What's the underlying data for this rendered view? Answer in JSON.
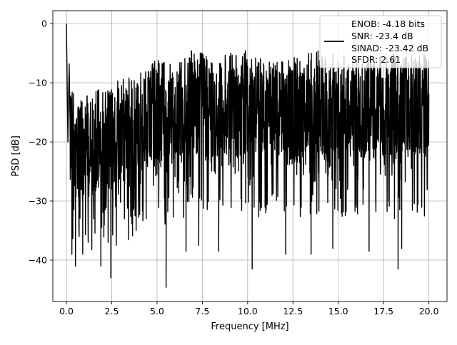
{
  "chart_data": {
    "type": "line",
    "title": "",
    "xlabel": "Frequency [MHz]",
    "ylabel": "PSD [dB]",
    "xlim": [
      -0.75,
      21.0
    ],
    "ylim": [
      -47.0,
      2.2
    ],
    "xticks": [
      0.0,
      2.5,
      5.0,
      7.5,
      10.0,
      12.5,
      15.0,
      17.5,
      20.0
    ],
    "xtick_labels": [
      "0.0",
      "2.5",
      "5.0",
      "7.5",
      "10.0",
      "12.5",
      "15.0",
      "17.5",
      "20.0"
    ],
    "yticks": [
      0,
      -10,
      -20,
      -30,
      -40
    ],
    "ytick_labels": [
      "0",
      "−10",
      "−20",
      "−30",
      "−40"
    ],
    "grid": true,
    "legend_position": "top-right",
    "legend_entries": [
      "ENOB: -4.18 bits",
      "SNR: -23.4 dB",
      "SINAD: -23.42 dB",
      "SFDR: 2.61"
    ],
    "series": [
      {
        "color": "#000000",
        "summary": "dense noise-like PSD; spike to 0 dB at 0 MHz; upper envelope rises from about -12 dB near 0-2 MHz to about -5 dB above 10 MHz; lower envelope near -25 to -40 dB",
        "upper_envelope": {
          "x": [
            0.0,
            0.1,
            0.5,
            1.0,
            1.5,
            2.0,
            2.5,
            3.0,
            4.0,
            5.0,
            6.0,
            7.0,
            8.0,
            9.0,
            10.0,
            11.0,
            12.0,
            13.0,
            14.0,
            15.0,
            16.0,
            17.0,
            18.0,
            19.0,
            20.0
          ],
          "y": [
            -20.0,
            -7.0,
            -12.0,
            -12.0,
            -11.0,
            -11.0,
            -11.0,
            -9.0,
            -8.0,
            -6.0,
            -7.0,
            -4.0,
            -6.0,
            -5.0,
            -4.5,
            -6.0,
            -6.0,
            -5.5,
            -4.0,
            -5.0,
            -5.0,
            -5.0,
            -5.0,
            -5.0,
            -5.0
          ]
        },
        "notable_points": {
          "x": [
            0.0,
            0.08,
            0.15,
            0.3,
            0.5,
            0.7,
            0.9,
            1.2,
            1.5,
            1.9,
            2.3,
            2.45,
            3.2,
            4.4,
            5.5,
            6.6,
            7.3,
            8.4,
            10.25,
            12.1,
            13.5,
            14.7,
            16.7,
            18.3,
            18.5,
            19.9
          ],
          "y": [
            0.0,
            -20.0,
            -6.8,
            -39.0,
            -41.0,
            -36.0,
            -39.0,
            -37.0,
            -33.0,
            -41.0,
            -37.0,
            -43.0,
            -33.0,
            -33.0,
            -44.6,
            -38.5,
            -37.5,
            -38.5,
            -41.5,
            -39.0,
            -39.0,
            -38.0,
            -38.5,
            -41.5,
            -38.0,
            -27.0
          ]
        }
      }
    ]
  }
}
